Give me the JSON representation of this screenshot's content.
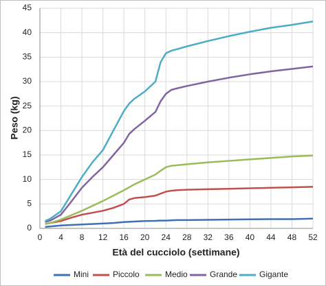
{
  "chart_data": {
    "type": "line",
    "xlabel": "Età del cucciolo (settimane)",
    "ylabel": "Peso (kg)",
    "x": [
      1,
      2,
      4,
      6,
      8,
      10,
      12,
      14,
      16,
      17,
      18,
      20,
      22,
      23,
      24,
      25,
      26,
      28,
      32,
      36,
      40,
      44,
      48,
      52
    ],
    "series": [
      {
        "name": "Mini",
        "color": "#3f6fb5",
        "values": [
          0.3,
          0.4,
          0.6,
          0.7,
          0.8,
          0.9,
          1.0,
          1.1,
          1.3,
          1.35,
          1.4,
          1.5,
          1.55,
          1.6,
          1.6,
          1.65,
          1.7,
          1.7,
          1.75,
          1.8,
          1.85,
          1.9,
          1.9,
          2
        ]
      },
      {
        "name": "Piccolo",
        "color": "#c0504d",
        "values": [
          0.9,
          1.1,
          1.5,
          2.2,
          2.8,
          3.2,
          3.6,
          4.2,
          5,
          5.9,
          6.2,
          6.4,
          6.7,
          7.1,
          7.5,
          7.7,
          7.8,
          7.9,
          8.0,
          8.1,
          8.2,
          8.3,
          8.4,
          8.5
        ]
      },
      {
        "name": "Medio",
        "color": "#9bbb59",
        "values": [
          0.9,
          1.1,
          1.8,
          2.7,
          3.6,
          4.6,
          5.6,
          6.7,
          7.8,
          8.4,
          9,
          10,
          11,
          11.8,
          12.5,
          12.8,
          12.9,
          13.1,
          13.5,
          13.8,
          14.1,
          14.4,
          14.7,
          14.9
        ]
      },
      {
        "name": "Grande",
        "color": "#8064a2",
        "values": [
          1.3,
          1.6,
          2.8,
          5.5,
          8.3,
          10.5,
          12.5,
          15,
          17.5,
          19.3,
          20.3,
          22,
          23.8,
          26,
          27.5,
          28.3,
          28.6,
          29.1,
          30,
          30.8,
          31.5,
          32.1,
          32.6,
          33.1
        ]
      },
      {
        "name": "Gigante",
        "color": "#4bacc6",
        "values": [
          1.5,
          2.0,
          3.5,
          7,
          10.5,
          13.5,
          16,
          20,
          24,
          25.5,
          26.5,
          28,
          30,
          34,
          35.8,
          36.3,
          36.6,
          37.2,
          38.3,
          39.3,
          40.2,
          41,
          41.6,
          42.3
        ]
      }
    ],
    "xlim": [
      0,
      52
    ],
    "xticks": [
      0,
      4,
      8,
      12,
      16,
      20,
      24,
      28,
      32,
      36,
      40,
      44,
      48,
      52
    ],
    "ylim": [
      0,
      45
    ],
    "yticks": [
      0,
      5,
      10,
      15,
      20,
      25,
      30,
      35,
      40,
      45
    ],
    "grid": true,
    "legend": "bottom"
  }
}
